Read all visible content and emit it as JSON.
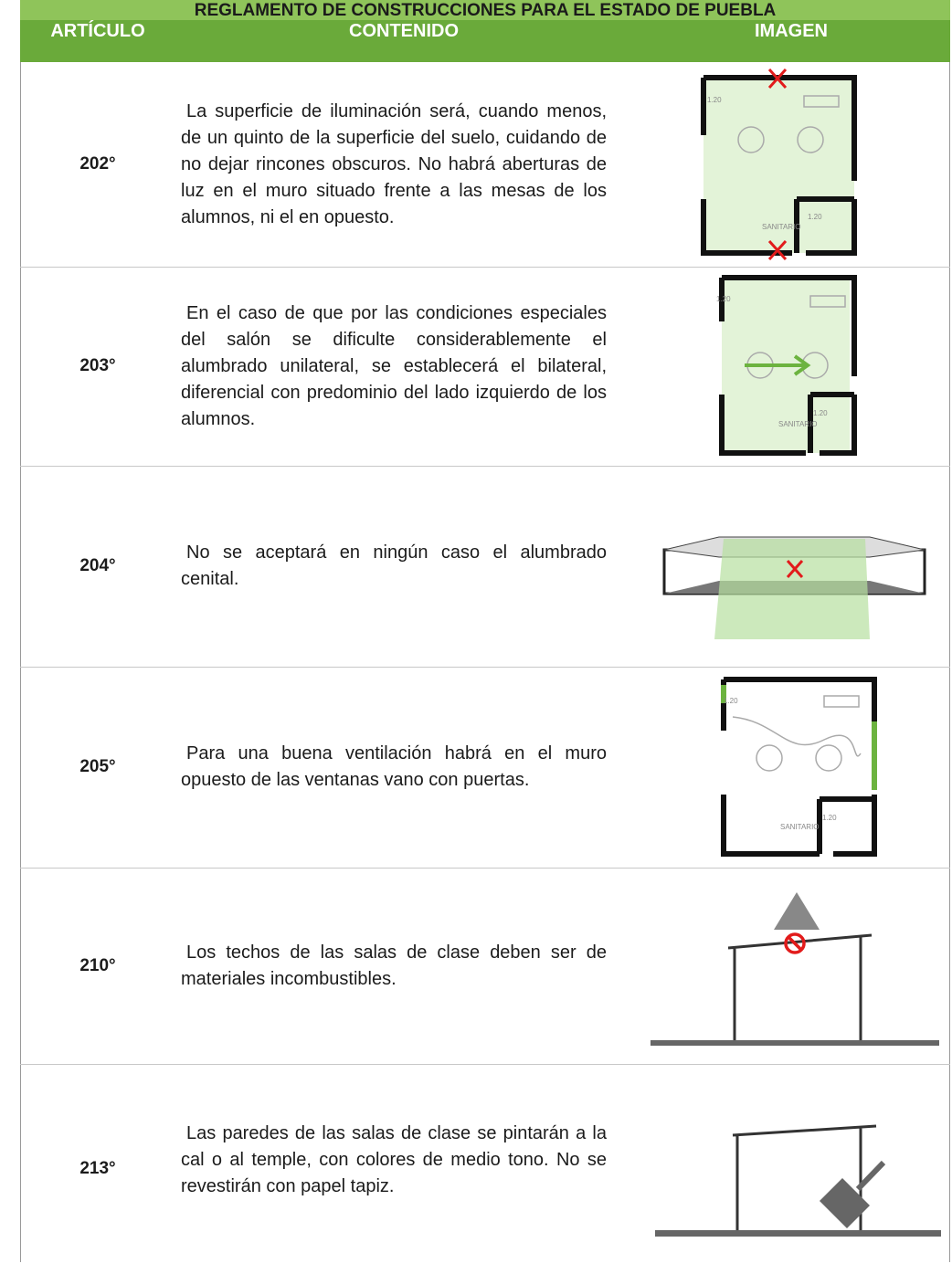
{
  "header": {
    "title": "REGLAMENTO DE CONSTRUCCIONES PARA EL ESTADO DE PUEBLA",
    "columns": [
      "ARTÍCULO",
      "CONTENIDO",
      "IMAGEN"
    ]
  },
  "table": {
    "rows": [
      {
        "article": "202°",
        "content": "La superficie de iluminación será, cuando menos, de un quinto de la superficie del suelo, cuidando de no dejar rincones obscuros. No habrá aberturas de luz en el muro situado frente a las mesas de los alumnos, ni el en opuesto.",
        "image_labels": [
          "1.20",
          "1.20",
          "SANITARIO"
        ]
      },
      {
        "article": "203°",
        "content": "En el caso de que por las condiciones especiales del salón se dificulte considerablemente el alumbrado unilateral, se establecerá el bilateral, diferencial con predominio del lado izquierdo de los alumnos.",
        "image_labels": [
          "1.20",
          "1.20",
          "SANITARIO"
        ]
      },
      {
        "article": "204°",
        "content": "No se aceptará en ningún caso el alumbrado cenital."
      },
      {
        "article": "205°",
        "content": "Para una buena ventilación habrá en el muro opuesto de las ventanas vano con puertas.",
        "image_labels": [
          "1.20",
          "1.20",
          "SANITARIO"
        ]
      },
      {
        "article": "210°",
        "content": "Los techos de las salas de clase deben ser de materiales incombustibles."
      },
      {
        "article": "213°",
        "content": "Las paredes de las salas de clase se pintarán a la cal o al temple, con colores de medio tono. No se revestirán con papel tapiz."
      }
    ]
  }
}
